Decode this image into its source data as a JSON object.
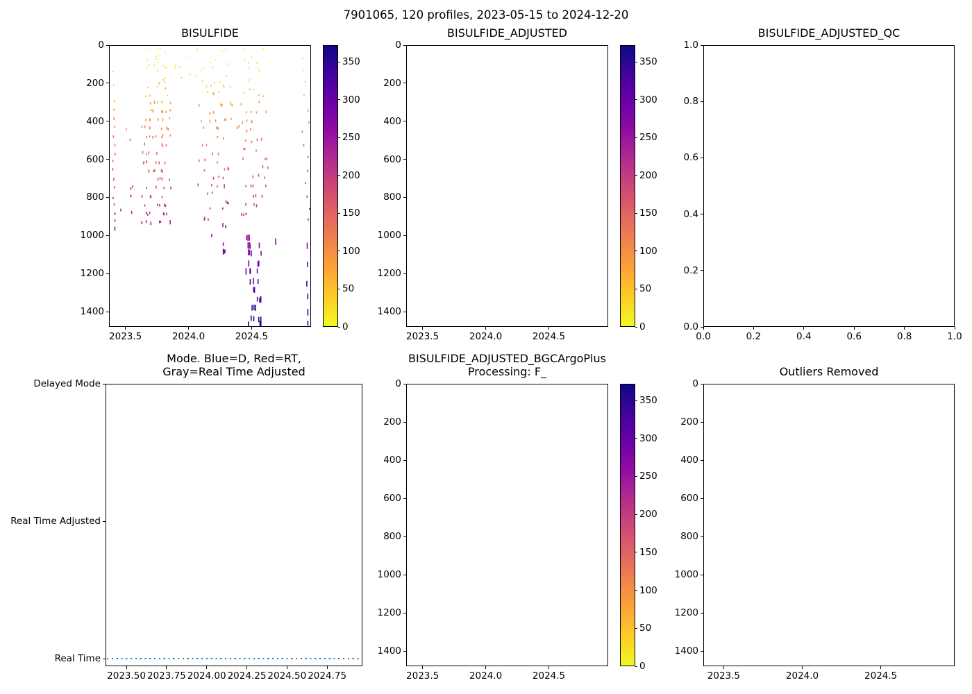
{
  "figure": {
    "title": "7901065, 120 profiles, 2023-05-15 to 2024-12-20",
    "background": "#ffffff",
    "text_color": "#000000"
  },
  "colormap": {
    "name": "plasma_r",
    "anchors": [
      "#0d0887",
      "#41049d",
      "#6a00a8",
      "#8f0da4",
      "#b12a90",
      "#cc4778",
      "#e16462",
      "#f1844b",
      "#fca636",
      "#fcce25",
      "#f0f921"
    ]
  },
  "chart_data": {
    "type": "scatter",
    "grid": false,
    "legend": false,
    "panels": [
      {
        "id": "bisulfide",
        "title_lines": [
          "BISULFIDE"
        ],
        "plot_type": "scatter",
        "xlim": [
          2023.37,
          2024.97
        ],
        "ylim": [
          1480,
          0
        ],
        "xticks": [
          {
            "v": 2023.5,
            "label": "2023.5"
          },
          {
            "v": 2024.0,
            "label": "2024.0"
          },
          {
            "v": 2024.5,
            "label": "2024.5"
          }
        ],
        "yticks": [
          {
            "v": 0,
            "label": "0"
          },
          {
            "v": 200,
            "label": "200"
          },
          {
            "v": 400,
            "label": "400"
          },
          {
            "v": 600,
            "label": "600"
          },
          {
            "v": 800,
            "label": "800"
          },
          {
            "v": 1000,
            "label": "1000"
          },
          {
            "v": 1200,
            "label": "1200"
          },
          {
            "v": 1400,
            "label": "1400"
          }
        ],
        "colorbar": {
          "vmin": 0,
          "vmax": 372,
          "ticks": [
            {
              "v": 0,
              "label": "0"
            },
            {
              "v": 50,
              "label": "50"
            },
            {
              "v": 100,
              "label": "100"
            },
            {
              "v": 150,
              "label": "150"
            },
            {
              "v": 200,
              "label": "200"
            },
            {
              "v": 250,
              "label": "250"
            },
            {
              "v": 300,
              "label": "300"
            },
            {
              "v": 350,
              "label": "350"
            }
          ]
        },
        "scatter": {
          "marker": "small-vertical-dash",
          "color_rule": "value = depth * 0.251 (range 0-372), colored with plasma_r",
          "seed": 7,
          "clusters": [
            {
              "type": "rows",
              "x_min": 2023.4,
              "x_max": 2023.418,
              "rows": [
                130,
                210,
                300,
                345,
                390,
                435,
                480,
                525,
                570,
                615,
                660,
                705,
                750,
                795,
                840,
                885,
                930,
                955
              ],
              "per_row_min": 1,
              "per_row_max": 1,
              "depth_jitter": 10
            },
            {
              "type": "uniform",
              "x_min": 2023.46,
              "x_max": 2023.61,
              "count": 8,
              "depth_min": 300,
              "depth_max": 900
            },
            {
              "type": "uniform",
              "x_min": 2023.63,
              "x_max": 2023.86,
              "count": 26,
              "depth_min": 15,
              "depth_max": 270
            },
            {
              "type": "rows",
              "x_min": 2023.63,
              "x_max": 2023.86,
              "rows": [
                300,
                345,
                390,
                435,
                480,
                525,
                570,
                615,
                660,
                705,
                750,
                795,
                840,
                885,
                930
              ],
              "per_row_min": 4,
              "per_row_max": 7,
              "depth_jitter": 7
            },
            {
              "type": "uniform",
              "x_min": 2023.88,
              "x_max": 2024.05,
              "count": 6,
              "depth_min": 30,
              "depth_max": 260
            },
            {
              "type": "uniform",
              "x_min": 2024.06,
              "x_max": 2024.33,
              "count": 24,
              "depth_min": 15,
              "depth_max": 270
            },
            {
              "type": "rows",
              "x_min": 2024.06,
              "x_max": 2024.33,
              "rows": [
                312,
                355,
                398,
                440,
                483,
                525,
                568,
                610,
                653,
                695,
                738,
                780,
                823,
                865,
                908
              ],
              "per_row_min": 2,
              "per_row_max": 5,
              "depth_jitter": 8
            },
            {
              "type": "rows",
              "x_min": 2024.15,
              "x_max": 2024.3,
              "rows": [
                950,
                1000,
                1050,
                1085
              ],
              "per_row_min": 1,
              "per_row_max": 2,
              "depth_jitter": 6
            },
            {
              "type": "uniform",
              "x_min": 2024.33,
              "x_max": 2024.43,
              "count": 7,
              "depth_min": 120,
              "depth_max": 520
            },
            {
              "type": "uniform",
              "x_min": 2024.42,
              "x_max": 2024.63,
              "count": 18,
              "depth_min": 15,
              "depth_max": 300
            },
            {
              "type": "rows",
              "x_min": 2024.42,
              "x_max": 2024.63,
              "rows": [
                350,
                400,
                450,
                500,
                548,
                595,
                640,
                690,
                740,
                790,
                840,
                890
              ],
              "per_row_min": 2,
              "per_row_max": 4,
              "depth_jitter": 8
            },
            {
              "type": "rows",
              "x_min": 2024.448,
              "x_max": 2024.575,
              "rows": [
                1012,
                1052,
                1092,
                1148,
                1188,
                1242,
                1282,
                1338,
                1378,
                1438,
                1466
              ],
              "per_row_min": 3,
              "per_row_max": 4,
              "depth_jitter": 4,
              "tall": true
            },
            {
              "type": "rows",
              "x_min": 2024.9,
              "x_max": 2024.96,
              "rows": [
                60,
                130,
                200,
                270,
                335,
                400,
                465,
                530,
                595,
                660,
                725,
                790,
                855,
                920
              ],
              "per_row_min": 1,
              "per_row_max": 1,
              "depth_jitter": 12
            },
            {
              "type": "rows",
              "x_min": 2024.93,
              "x_max": 2024.95,
              "rows": [
                1050,
                1150,
                1250,
                1320,
                1400,
                1460
              ],
              "per_row_min": 1,
              "per_row_max": 1,
              "depth_jitter": 5,
              "tall": true
            }
          ],
          "special_points": [
            {
              "x": 2024.69,
              "depth": 1032,
              "tall": true
            },
            {
              "x": 2024.275,
              "depth": 1085,
              "tall": true
            }
          ]
        }
      },
      {
        "id": "bisulfide_adjusted",
        "title_lines": [
          "BISULFIDE_ADJUSTED"
        ],
        "plot_type": "scatter-empty",
        "xlim": [
          2023.37,
          2024.97
        ],
        "ylim": [
          1480,
          0
        ],
        "xticks": [
          {
            "v": 2023.5,
            "label": "2023.5"
          },
          {
            "v": 2024.0,
            "label": "2024.0"
          },
          {
            "v": 2024.5,
            "label": "2024.5"
          }
        ],
        "yticks": [
          {
            "v": 0,
            "label": "0"
          },
          {
            "v": 200,
            "label": "200"
          },
          {
            "v": 400,
            "label": "400"
          },
          {
            "v": 600,
            "label": "600"
          },
          {
            "v": 800,
            "label": "800"
          },
          {
            "v": 1000,
            "label": "1000"
          },
          {
            "v": 1200,
            "label": "1200"
          },
          {
            "v": 1400,
            "label": "1400"
          }
        ],
        "colorbar": {
          "vmin": 0,
          "vmax": 372,
          "ticks": [
            {
              "v": 0,
              "label": "0"
            },
            {
              "v": 50,
              "label": "50"
            },
            {
              "v": 100,
              "label": "100"
            },
            {
              "v": 150,
              "label": "150"
            },
            {
              "v": 200,
              "label": "200"
            },
            {
              "v": 250,
              "label": "250"
            },
            {
              "v": 300,
              "label": "300"
            },
            {
              "v": 350,
              "label": "350"
            }
          ]
        }
      },
      {
        "id": "bisulfide_adjusted_qc",
        "title_lines": [
          "BISULFIDE_ADJUSTED_QC"
        ],
        "plot_type": "empty",
        "xlim": [
          0,
          1
        ],
        "ylim": [
          0,
          1
        ],
        "xticks": [
          {
            "v": 0.0,
            "label": "0.0"
          },
          {
            "v": 0.2,
            "label": "0.2"
          },
          {
            "v": 0.4,
            "label": "0.4"
          },
          {
            "v": 0.6,
            "label": "0.6"
          },
          {
            "v": 0.8,
            "label": "0.8"
          },
          {
            "v": 1.0,
            "label": "1.0"
          }
        ],
        "yticks": [
          {
            "v": 0.0,
            "label": "0.0"
          },
          {
            "v": 0.2,
            "label": "0.2"
          },
          {
            "v": 0.4,
            "label": "0.4"
          },
          {
            "v": 0.6,
            "label": "0.6"
          },
          {
            "v": 0.8,
            "label": "0.8"
          },
          {
            "v": 1.0,
            "label": "1.0"
          }
        ]
      },
      {
        "id": "mode",
        "title_lines": [
          "Mode. Blue=D, Red=RT,",
          "Gray=Real Time Adjusted"
        ],
        "plot_type": "line",
        "xlim": [
          2023.37,
          2024.97
        ],
        "ylim": [
          -0.055,
          2.0
        ],
        "xticks": [
          {
            "v": 2023.5,
            "label": "2023.50"
          },
          {
            "v": 2023.75,
            "label": "2023.75"
          },
          {
            "v": 2024.0,
            "label": "2024.00"
          },
          {
            "v": 2024.25,
            "label": "2024.25"
          },
          {
            "v": 2024.5,
            "label": "2024.50"
          },
          {
            "v": 2024.75,
            "label": "2024.75"
          }
        ],
        "yticks": [
          {
            "v": 2,
            "label": "Delayed Mode"
          },
          {
            "v": 1,
            "label": "Real Time Adjusted"
          },
          {
            "v": 0,
            "label": "Real Time"
          }
        ],
        "line": {
          "y_value": 0,
          "y_label": "Real Time",
          "color": "#1f77b4",
          "linestyle": "dotted",
          "meaning": "all 120 profiles are Real Time mode for the full time range"
        }
      },
      {
        "id": "bisulfide_adjusted_bgcargoplus",
        "title_lines": [
          "BISULFIDE_ADJUSTED_BGCArgoPlus",
          "Processing: F_"
        ],
        "plot_type": "scatter-empty",
        "xlim": [
          2023.37,
          2024.97
        ],
        "ylim": [
          1480,
          0
        ],
        "xticks": [
          {
            "v": 2023.5,
            "label": "2023.5"
          },
          {
            "v": 2024.0,
            "label": "2024.0"
          },
          {
            "v": 2024.5,
            "label": "2024.5"
          }
        ],
        "yticks": [
          {
            "v": 0,
            "label": "0"
          },
          {
            "v": 200,
            "label": "200"
          },
          {
            "v": 400,
            "label": "400"
          },
          {
            "v": 600,
            "label": "600"
          },
          {
            "v": 800,
            "label": "800"
          },
          {
            "v": 1000,
            "label": "1000"
          },
          {
            "v": 1200,
            "label": "1200"
          },
          {
            "v": 1400,
            "label": "1400"
          }
        ],
        "colorbar": {
          "vmin": 0,
          "vmax": 372,
          "ticks": [
            {
              "v": 0,
              "label": "0"
            },
            {
              "v": 50,
              "label": "50"
            },
            {
              "v": 100,
              "label": "100"
            },
            {
              "v": 150,
              "label": "150"
            },
            {
              "v": 200,
              "label": "200"
            },
            {
              "v": 250,
              "label": "250"
            },
            {
              "v": 300,
              "label": "300"
            },
            {
              "v": 350,
              "label": "350"
            }
          ]
        }
      },
      {
        "id": "outliers_removed",
        "title_lines": [
          "Outliers Removed"
        ],
        "plot_type": "empty",
        "xlim": [
          2023.37,
          2024.97
        ],
        "ylim": [
          1480,
          0
        ],
        "xticks": [
          {
            "v": 2023.5,
            "label": "2023.5"
          },
          {
            "v": 2024.0,
            "label": "2024.0"
          },
          {
            "v": 2024.5,
            "label": "2024.5"
          }
        ],
        "yticks": [
          {
            "v": 0,
            "label": "0"
          },
          {
            "v": 200,
            "label": "200"
          },
          {
            "v": 400,
            "label": "400"
          },
          {
            "v": 600,
            "label": "600"
          },
          {
            "v": 800,
            "label": "800"
          },
          {
            "v": 1000,
            "label": "1000"
          },
          {
            "v": 1200,
            "label": "1200"
          },
          {
            "v": 1400,
            "label": "1400"
          }
        ]
      }
    ]
  }
}
